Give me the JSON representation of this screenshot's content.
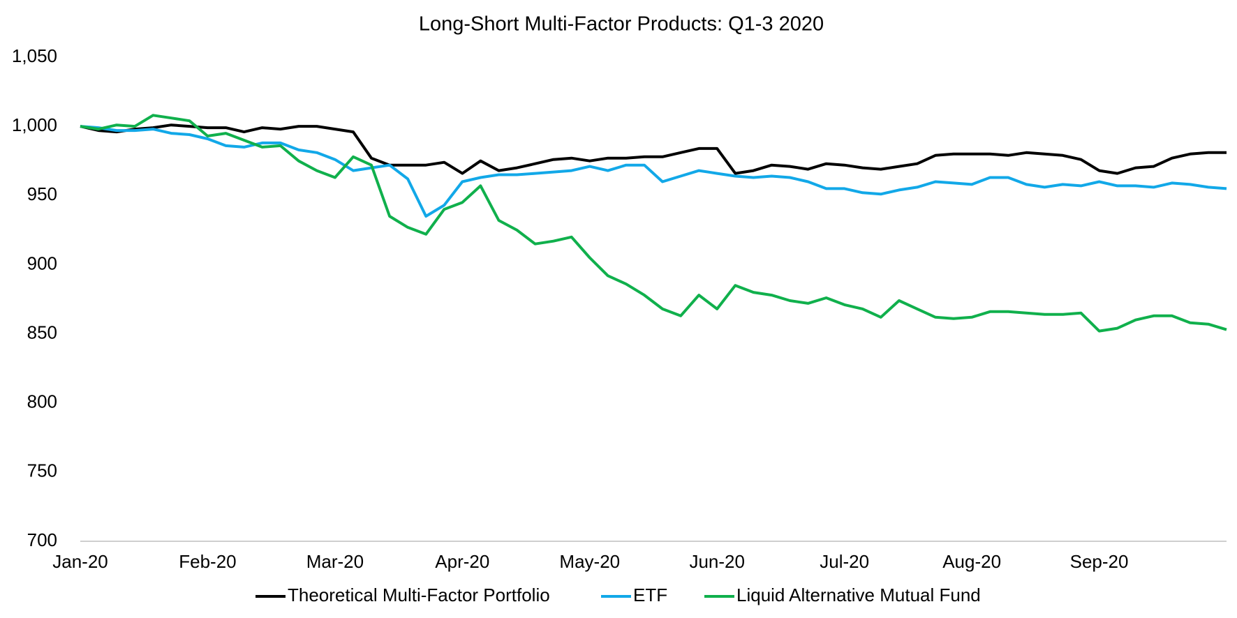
{
  "chart_data": {
    "type": "line",
    "title": "Long-Short Multi-Factor Products: Q1-3 2020",
    "categories": [
      "Jan-20",
      null,
      null,
      null,
      null,
      null,
      null,
      "Feb-20",
      null,
      null,
      null,
      null,
      null,
      null,
      "Mar-20",
      null,
      null,
      null,
      null,
      null,
      null,
      "Apr-20",
      null,
      null,
      null,
      null,
      null,
      null,
      "May-20",
      null,
      null,
      null,
      null,
      null,
      null,
      "Jun-20",
      null,
      null,
      null,
      null,
      null,
      null,
      "Jul-20",
      null,
      null,
      null,
      null,
      null,
      null,
      "Aug-20",
      null,
      null,
      null,
      null,
      null,
      null,
      "Sep-20",
      null,
      null,
      null,
      null,
      null,
      null,
      null
    ],
    "series": [
      {
        "name": "Theoretical Multi-Factor Portfolio",
        "color": "#000000",
        "values": [
          1000,
          997,
          996,
          998,
          999,
          1001,
          1000,
          999,
          999,
          996,
          999,
          998,
          1000,
          1000,
          998,
          996,
          977,
          972,
          972,
          972,
          974,
          966,
          975,
          968,
          970,
          973,
          976,
          977,
          975,
          977,
          977,
          978,
          978,
          981,
          984,
          984,
          966,
          968,
          972,
          971,
          969,
          973,
          972,
          970,
          969,
          971,
          973,
          979,
          980,
          980,
          980,
          979,
          981,
          980,
          979,
          976,
          968,
          966,
          970,
          971,
          977,
          980,
          981,
          981
        ]
      },
      {
        "name": "ETF",
        "color": "#12a8e8",
        "values": [
          1000,
          999,
          997,
          997,
          998,
          995,
          994,
          991,
          986,
          985,
          988,
          988,
          983,
          981,
          976,
          968,
          970,
          972,
          962,
          935,
          943,
          960,
          963,
          965,
          965,
          966,
          967,
          968,
          971,
          968,
          972,
          972,
          960,
          964,
          968,
          966,
          964,
          963,
          964,
          963,
          960,
          955,
          955,
          952,
          951,
          954,
          956,
          960,
          959,
          958,
          963,
          963,
          958,
          956,
          958,
          957,
          960,
          957,
          957,
          956,
          959,
          958,
          956,
          955
        ]
      },
      {
        "name": "Liquid Alternative Mutual Fund",
        "color": "#10b04c",
        "values": [
          1000,
          998,
          1001,
          1000,
          1008,
          1006,
          1004,
          993,
          995,
          990,
          985,
          986,
          975,
          968,
          963,
          978,
          972,
          935,
          927,
          922,
          940,
          945,
          957,
          932,
          925,
          915,
          917,
          920,
          905,
          892,
          886,
          878,
          868,
          863,
          878,
          868,
          885,
          880,
          878,
          874,
          872,
          876,
          871,
          868,
          862,
          874,
          868,
          862,
          861,
          862,
          866,
          866,
          865,
          864,
          864,
          865,
          852,
          854,
          860,
          863,
          863,
          858,
          857,
          853
        ]
      }
    ],
    "ylim": [
      700,
      1050
    ],
    "yticks": [
      700,
      750,
      800,
      850,
      900,
      950,
      {
        "value": 1000,
        "label": "1,000"
      },
      {
        "value": 1050,
        "label": "1,050"
      }
    ],
    "grid": false,
    "legend": "bottom"
  }
}
